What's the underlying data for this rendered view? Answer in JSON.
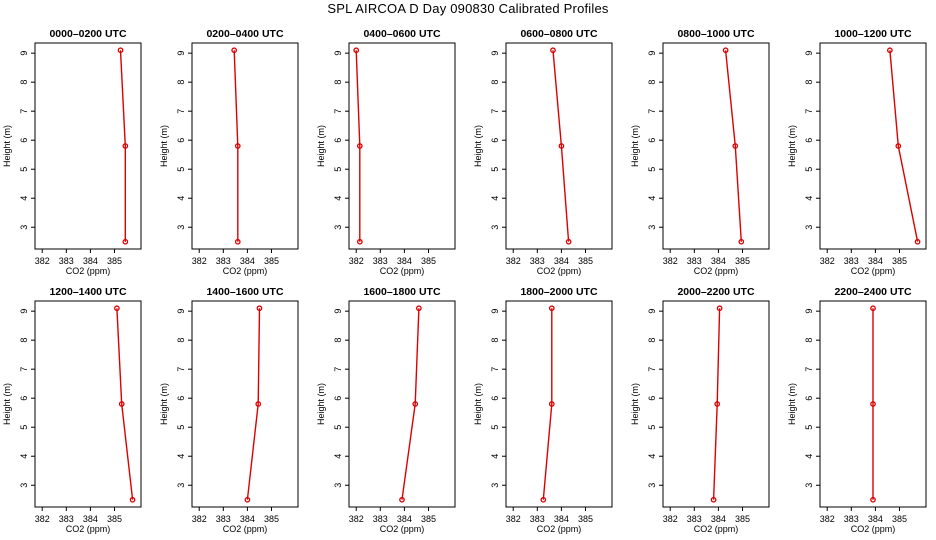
{
  "title": "SPL AIRCOA D  Day 090830  Calibrated Profiles",
  "chart_data": {
    "type": "line",
    "layout": "2 rows x 6 columns",
    "xlabel": "CO2 (ppm)",
    "ylabel": "Height (m)",
    "xlim": [
      381.7,
      386.1
    ],
    "ylim": [
      2.25,
      9.35
    ],
    "xticks": [
      382,
      383,
      384,
      385
    ],
    "yticks": [
      3,
      4,
      5,
      6,
      7,
      8,
      9
    ],
    "heights": [
      9.1,
      5.8,
      2.5
    ],
    "series_color": "#dd0000",
    "panels": [
      {
        "title": "0000–0200 UTC",
        "co2": [
          385.25,
          385.45,
          385.45
        ]
      },
      {
        "title": "0200–0400 UTC",
        "co2": [
          383.45,
          383.6,
          383.6
        ]
      },
      {
        "title": "0400–0600 UTC",
        "co2": [
          382.0,
          382.15,
          382.15
        ]
      },
      {
        "title": "0600–0800 UTC",
        "co2": [
          383.65,
          384.0,
          384.3
        ]
      },
      {
        "title": "0800–1000 UTC",
        "co2": [
          384.3,
          384.7,
          384.95
        ]
      },
      {
        "title": "1000–1200 UTC",
        "co2": [
          384.6,
          384.95,
          385.75
        ]
      },
      {
        "title": "1200–1400 UTC",
        "co2": [
          385.1,
          385.3,
          385.75
        ]
      },
      {
        "title": "1400–1600 UTC",
        "co2": [
          384.5,
          384.45,
          384.0
        ]
      },
      {
        "title": "1600–1800 UTC",
        "co2": [
          384.6,
          384.45,
          383.9
        ]
      },
      {
        "title": "1800–2000 UTC",
        "co2": [
          383.6,
          383.6,
          383.25
        ]
      },
      {
        "title": "2000–2200 UTC",
        "co2": [
          384.05,
          383.95,
          383.8
        ]
      },
      {
        "title": "2200–2400 UTC",
        "co2": [
          383.9,
          383.9,
          383.9
        ]
      }
    ]
  }
}
